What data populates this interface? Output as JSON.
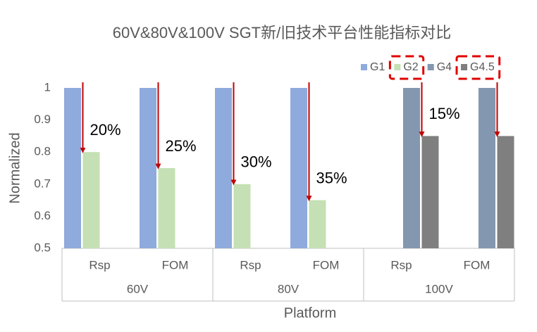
{
  "chart_data": {
    "type": "bar",
    "title": "60V&80V&100V SGT新/旧技术平台性能指标对比",
    "x_label": "Platform",
    "y_label": "Normalized",
    "categories": [
      "Rsp",
      "FOM",
      "Rsp",
      "FOM",
      "Rsp",
      "FOM"
    ],
    "groups": [
      "60V",
      "80V",
      "100V"
    ],
    "series": [
      {
        "name": "G1",
        "color": "#8faadc",
        "values": [
          1,
          1,
          1,
          1,
          null,
          null
        ]
      },
      {
        "name": "G2",
        "color": "#c5e0b4",
        "values": [
          0.8,
          0.75,
          0.7,
          0.65,
          null,
          null
        ]
      },
      {
        "name": "G4",
        "color": "#8497b0",
        "values": [
          null,
          null,
          null,
          null,
          1,
          1
        ]
      },
      {
        "name": "G4.5",
        "color": "#7f7f7f",
        "values": [
          null,
          null,
          null,
          null,
          0.85,
          0.85
        ]
      }
    ],
    "annotations": [
      "20%",
      "25%",
      "30%",
      "35%",
      "15%"
    ],
    "ylim": [
      0.5,
      1
    ],
    "yticks": [
      0.5,
      0.6,
      0.7,
      0.8,
      0.9,
      1
    ],
    "grid": false,
    "legend": "top-right"
  }
}
